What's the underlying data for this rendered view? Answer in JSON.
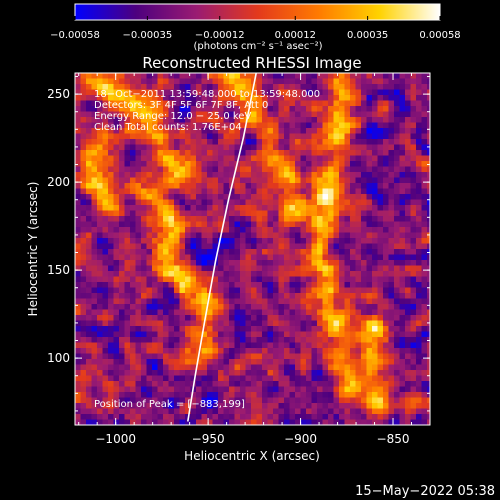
{
  "chart_data": {
    "type": "heatmap",
    "title": "Reconstructed RHESSI Image",
    "xlabel": "Heliocentric X (arcsec)",
    "ylabel": "Heliocentric Y (arcsec)",
    "xlim": [
      -1022,
      -830
    ],
    "ylim": [
      62,
      262
    ],
    "x_ticks": [
      -1000,
      -950,
      -900,
      -850
    ],
    "y_ticks": [
      100,
      150,
      200,
      250
    ],
    "x_tick_labels": [
      "−1000",
      "−950",
      "−900",
      "−850"
    ],
    "y_tick_labels": [
      "100",
      "150",
      "200",
      "250"
    ],
    "colorbar": {
      "min": -0.00058,
      "max": 0.00058,
      "ticks": [
        -0.00058,
        -0.00035,
        -0.00012,
        0.00012,
        0.00035,
        0.00058
      ],
      "tick_labels": [
        "−0.00058",
        "−0.00035",
        "−0.00012",
        "0.00012",
        "0.00035",
        "0.00058"
      ],
      "unit_label": "(photons cm⁻² s⁻¹ asec⁻²)",
      "colormap": [
        "#0000ff",
        "#4d007f",
        "#9a1b72",
        "#e3391d",
        "#ff7a00",
        "#ffd200",
        "#ffffff"
      ]
    },
    "annotations": [
      "18−Oct−2011 13:59:48.000 to 13:59:48.000",
      "Detectors: 3F 4F 5F 6F 7F 8F, Att 0",
      "Energy Range: 12.0 − 25.0 keV",
      "Clean    Total counts: 1.76E+04"
    ],
    "peak_label": "Position of Peak = [−883,199]",
    "peak": [
      -883,
      199
    ],
    "limb_line_color": "#ffffff"
  },
  "footer": {
    "timestamp": "15−May−2022 05:38"
  }
}
